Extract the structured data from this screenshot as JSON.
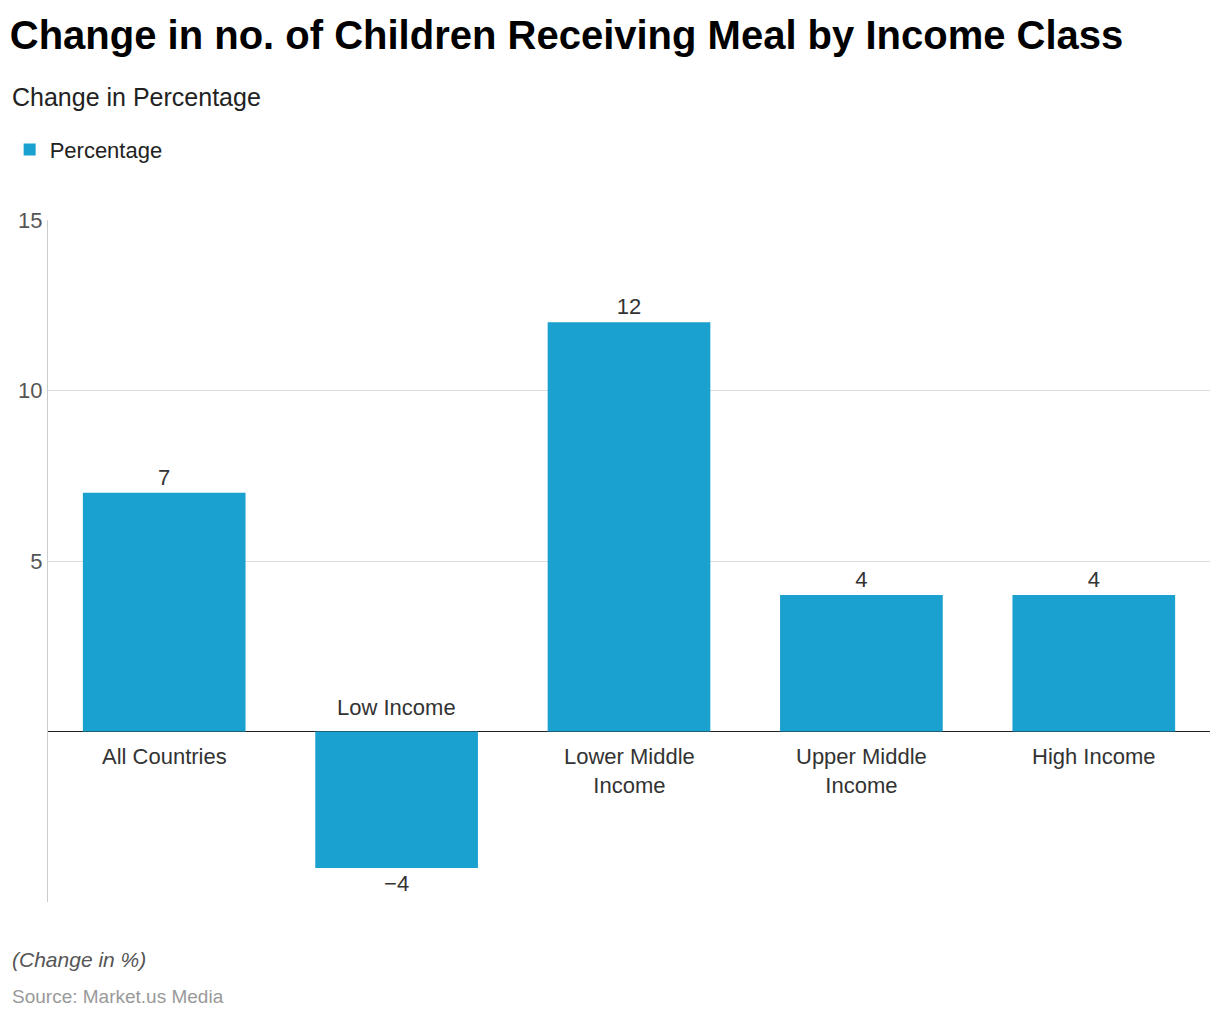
{
  "chart_data": {
    "type": "bar",
    "title": "Change in no. of Children Receiving Meal by Income Class",
    "subtitle": "Change in Percentage",
    "categories": [
      "All Countries",
      "Low Income",
      "Lower Middle Income",
      "Upper Middle Income",
      "High Income"
    ],
    "series": [
      {
        "name": "Percentage",
        "color": "#1ba1cf",
        "values": [
          7,
          -4,
          12,
          4,
          4
        ],
        "value_labels": [
          "7",
          "−4",
          "12",
          "4",
          "4"
        ]
      }
    ],
    "ylim": [
      -5,
      15
    ],
    "yticks": [
      5,
      10,
      15
    ],
    "grid": true,
    "data_labels": true,
    "legend": "top-left",
    "caption": "(Change in %)",
    "source": "Source: Market.us Media"
  }
}
